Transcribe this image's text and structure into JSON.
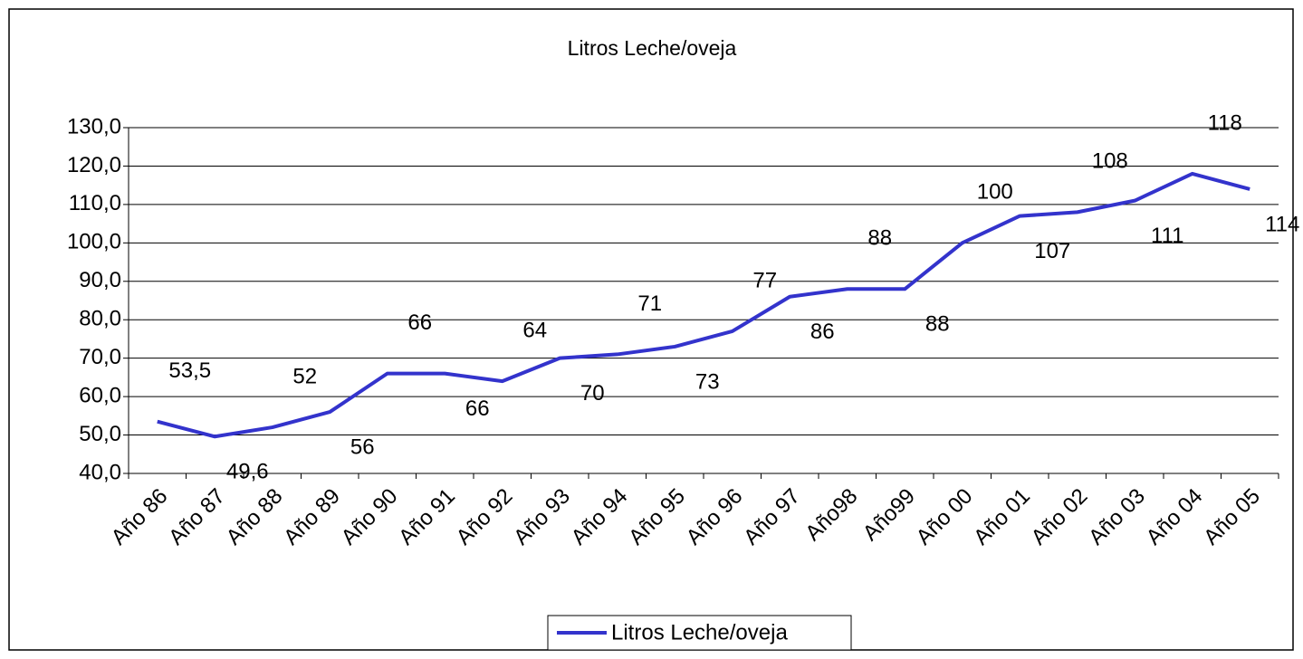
{
  "chart_data": {
    "type": "line",
    "title": "Litros Leche/oveja",
    "categories": [
      "Año 86",
      "Año 87",
      "Año 88",
      "Año 89",
      "Año 90",
      "Año 91",
      "Año 92",
      "Año 93",
      "Año 94",
      "Año 95",
      "Año 96",
      "Año 97",
      "Año98",
      "Año99",
      "Año 00",
      "Año 01",
      "Año 02",
      "Año 03",
      "Año 04",
      "Año 05"
    ],
    "series": [
      {
        "name": "Litros Leche/oveja",
        "color": "#3333cc",
        "values": [
          53.5,
          49.6,
          52,
          56,
          66,
          66,
          64,
          70,
          71,
          73,
          77,
          86,
          88,
          88,
          100,
          107,
          108,
          111,
          118,
          114
        ],
        "value_labels": [
          "53,5",
          "49,6",
          "52",
          "56",
          "66",
          "66",
          "64",
          "70",
          "71",
          "73",
          "77",
          "86",
          "88",
          "88",
          "100",
          "107",
          "108",
          "111",
          "118",
          "114"
        ]
      }
    ],
    "ylim": [
      40,
      130
    ],
    "yticks": [
      {
        "value": 40,
        "label": "40,0"
      },
      {
        "value": 50,
        "label": "50,0"
      },
      {
        "value": 60,
        "label": "60,0"
      },
      {
        "value": 70,
        "label": "70,0"
      },
      {
        "value": 80,
        "label": "80,0"
      },
      {
        "value": 90,
        "label": "90,0"
      },
      {
        "value": 100,
        "label": "100,0"
      },
      {
        "value": 110,
        "label": "110,0"
      },
      {
        "value": 120,
        "label": "120,0"
      },
      {
        "value": 130,
        "label": "130,0"
      }
    ],
    "grid": true,
    "legend": "bottom"
  }
}
